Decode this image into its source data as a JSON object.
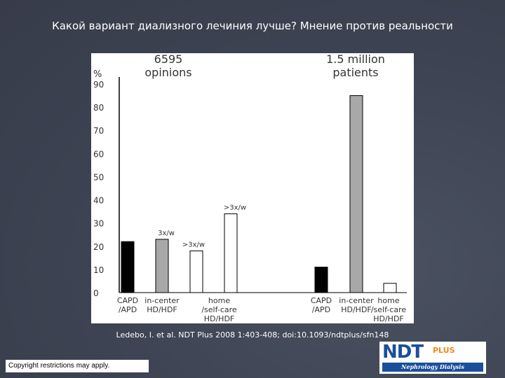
{
  "slide": {
    "title": "Какой вариант диализного лечиния лучше? Мнение против реальности",
    "citation": "Ledebo, I. et al. NDT Plus 2008 1:403-408; doi:10.1093/ndtplus/sfn148",
    "copyright": "Copyright restrictions may apply.",
    "logo": {
      "main": "NDT",
      "plus": "PLUS",
      "subtitle": "Nephrology Dialysis Transplantation"
    }
  },
  "chart_data": {
    "type": "bar",
    "ylabel": "%",
    "ylim": [
      0,
      90
    ],
    "yticks": [
      0,
      10,
      20,
      30,
      40,
      50,
      60,
      70,
      80,
      90
    ],
    "colors": {
      "capd": "#000000",
      "incenter": "#a8a8a8",
      "home": "#ffffff"
    },
    "groups": [
      {
        "header": [
          "6595",
          "opinions"
        ],
        "bars": [
          {
            "label": [
              "CAPD",
              "/APD"
            ],
            "value": 22,
            "kind": "capd",
            "note": ""
          },
          {
            "label": [
              "in-center",
              "HD/HDF"
            ],
            "value": 23,
            "kind": "incenter",
            "note": "3x/w"
          },
          {
            "label": [
              "home",
              "/self-care",
              "HD/HDF"
            ],
            "value": 18,
            "kind": "home",
            "note": ">3x/w",
            "note_side": "left"
          },
          {
            "label": [],
            "value": 34,
            "kind": "home",
            "note": ">3x/w"
          }
        ]
      },
      {
        "header": [
          "1.5 million",
          "patients"
        ],
        "bars": [
          {
            "label": [
              "CAPD",
              "/APD"
            ],
            "value": 11,
            "kind": "capd",
            "note": ""
          },
          {
            "label": [
              "in-center",
              "HD/HDF"
            ],
            "value": 85,
            "kind": "incenter",
            "note": ""
          },
          {
            "label": [
              "home",
              "/self-care",
              "HD/HDF"
            ],
            "value": 4,
            "kind": "home",
            "note": ""
          }
        ]
      }
    ]
  }
}
